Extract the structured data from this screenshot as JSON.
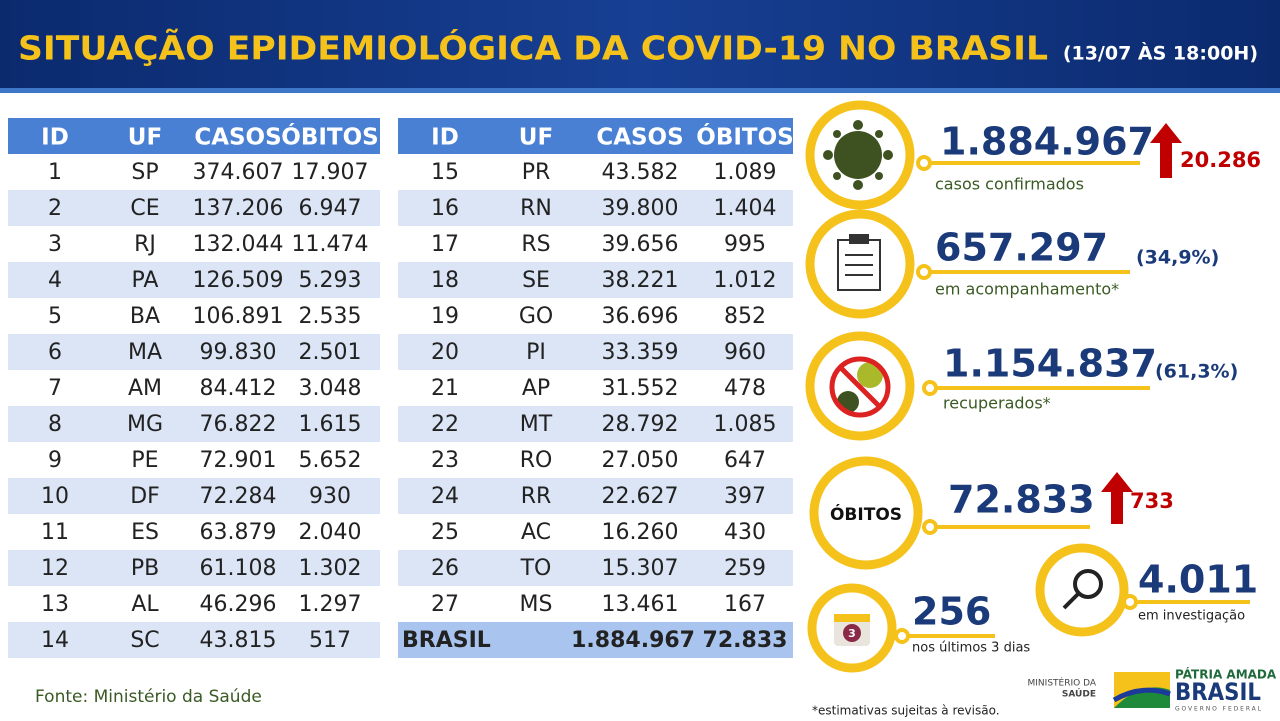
{
  "header": {
    "title": "SITUAÇÃO EPIDEMIOLÓGICA DA COVID-19 NO BRASIL",
    "date": "(13/07 ÀS 18:00H)"
  },
  "tables": [
    {
      "columns": [
        "ID",
        "UF",
        "CASOS",
        "ÓBITOS"
      ],
      "rows": [
        [
          "1",
          "SP",
          "374.607",
          "17.907"
        ],
        [
          "2",
          "CE",
          "137.206",
          "6.947"
        ],
        [
          "3",
          "RJ",
          "132.044",
          "11.474"
        ],
        [
          "4",
          "PA",
          "126.509",
          "5.293"
        ],
        [
          "5",
          "BA",
          "106.891",
          "2.535"
        ],
        [
          "6",
          "MA",
          "99.830",
          "2.501"
        ],
        [
          "7",
          "AM",
          "84.412",
          "3.048"
        ],
        [
          "8",
          "MG",
          "76.822",
          "1.615"
        ],
        [
          "9",
          "PE",
          "72.901",
          "5.652"
        ],
        [
          "10",
          "DF",
          "72.284",
          "930"
        ],
        [
          "11",
          "ES",
          "63.879",
          "2.040"
        ],
        [
          "12",
          "PB",
          "61.108",
          "1.302"
        ],
        [
          "13",
          "AL",
          "46.296",
          "1.297"
        ],
        [
          "14",
          "SC",
          "43.815",
          "517"
        ]
      ]
    },
    {
      "columns": [
        "ID",
        "UF",
        "CASOS",
        "ÓBITOS"
      ],
      "rows": [
        [
          "15",
          "PR",
          "43.582",
          "1.089"
        ],
        [
          "16",
          "RN",
          "39.800",
          "1.404"
        ],
        [
          "17",
          "RS",
          "39.656",
          "995"
        ],
        [
          "18",
          "SE",
          "38.221",
          "1.012"
        ],
        [
          "19",
          "GO",
          "36.696",
          "852"
        ],
        [
          "20",
          "PI",
          "33.359",
          "960"
        ],
        [
          "21",
          "AP",
          "31.552",
          "478"
        ],
        [
          "22",
          "MT",
          "28.792",
          "1.085"
        ],
        [
          "23",
          "RO",
          "27.050",
          "647"
        ],
        [
          "24",
          "RR",
          "22.627",
          "397"
        ],
        [
          "25",
          "AC",
          "16.260",
          "430"
        ],
        [
          "26",
          "TO",
          "15.307",
          "259"
        ],
        [
          "27",
          "MS",
          "13.461",
          "167"
        ]
      ]
    }
  ],
  "total": {
    "label": "BRASIL",
    "casos": "1.884.967",
    "obitos": "72.833"
  },
  "stats": {
    "confirmed": {
      "value": "1.884.967",
      "increase": "20.286",
      "label": "casos confirmados"
    },
    "monitoring": {
      "value": "657.297",
      "percent": "(34,9%)",
      "label": "em acompanhamento*"
    },
    "recovered": {
      "value": "1.154.837",
      "percent": "(61,3%)",
      "label": "recuperados*"
    },
    "deaths": {
      "title": "ÓBITOS",
      "value": "72.833",
      "increase": "733"
    },
    "investigation": {
      "value": "4.011",
      "label": "em investigação"
    },
    "last3days": {
      "value": "256",
      "label": "nos últimos 3 dias",
      "icon_day": "3"
    }
  },
  "footer": {
    "source": "Fonte: Ministério da Saúde",
    "note": "*estimativas sujeitas à revisão.",
    "ministry": [
      "MINISTÉRIO DA",
      "SAÚDE"
    ],
    "brand": [
      "PÁTRIA AMADA",
      "BRASIL",
      "GOVERNO FEDERAL"
    ]
  }
}
